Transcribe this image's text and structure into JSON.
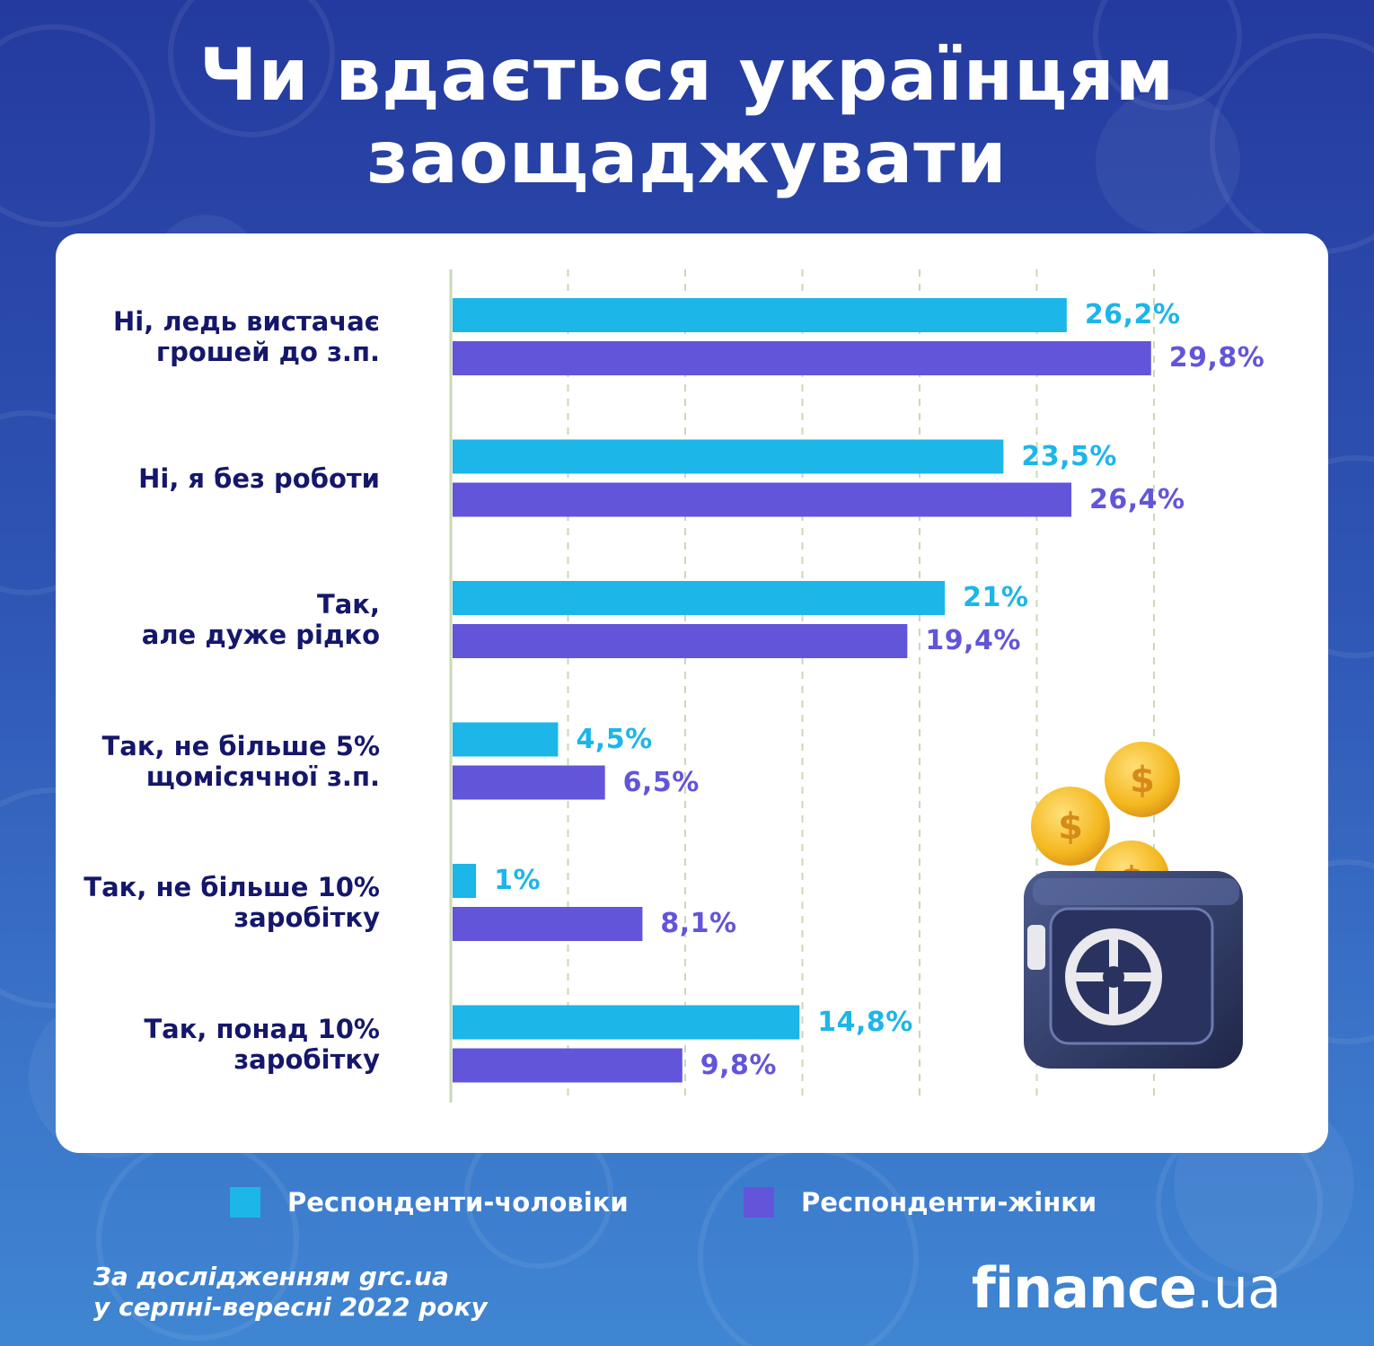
{
  "title": {
    "line1": "Чи вдається українцям",
    "line2": "заощаджувати"
  },
  "colors": {
    "men": "#1cb6e8",
    "women": "#6255d9",
    "label": "#15176b",
    "grid": "#c9d9b5"
  },
  "chart_data": {
    "type": "bar",
    "orientation": "horizontal",
    "xlim": [
      0,
      30
    ],
    "grid": true,
    "categories": [
      "Ні, ледь вистачає\nгрошей до з.п.",
      "Ні, я без роботи",
      "Так,\nале дуже рідко",
      "Так, не більше 5%\nщомісячної з.п.",
      "Так, не більше 10%\nзаробітку",
      "Так, понад 10%\nзаробітку"
    ],
    "series": [
      {
        "name": "Респонденти-чоловіки",
        "values": [
          26.2,
          23.5,
          21,
          4.5,
          1,
          14.8
        ],
        "labels": [
          "26,2%",
          "23,5%",
          "21%",
          "4,5%",
          "1%",
          "14,8%"
        ]
      },
      {
        "name": "Респонденти-жінки",
        "values": [
          29.8,
          26.4,
          19.4,
          6.5,
          8.1,
          9.8
        ],
        "labels": [
          "29,8%",
          "26,4%",
          "19,4%",
          "6,5%",
          "8,1%",
          "9,8%"
        ]
      }
    ],
    "legend_position": "bottom"
  },
  "legend": {
    "men": "Респонденти-чоловіки",
    "women": "Респонденти-жінки"
  },
  "source": {
    "line1": "За дослідженням grc.ua",
    "line2": "у серпні-вересні 2022 року"
  },
  "brand": {
    "part1": "finance",
    "part2": ".ua"
  },
  "illustration": {
    "icon": "safe-with-coins-icon"
  }
}
